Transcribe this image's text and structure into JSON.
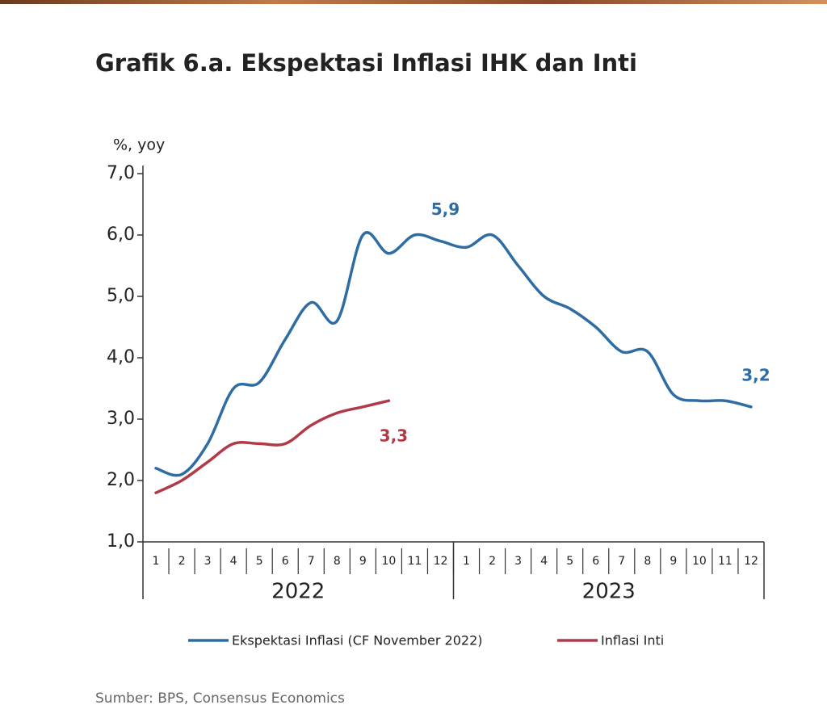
{
  "chart_data": {
    "type": "line",
    "title": "Grafik 6.a. Ekspektasi Inflasi IHK dan Inti",
    "y_label": "%, yoy",
    "source": "Sumber: BPS, Consensus Economics",
    "categories": [
      "1",
      "2",
      "3",
      "4",
      "5",
      "6",
      "7",
      "8",
      "9",
      "10",
      "11",
      "12",
      "1",
      "2",
      "3",
      "4",
      "5",
      "6",
      "7",
      "8",
      "9",
      "10",
      "11",
      "12"
    ],
    "groups": [
      "2022",
      "2023"
    ],
    "series": [
      {
        "name": "Ekspektasi Inflasi (CF November 2022)",
        "color": "#2e6da4",
        "values": [
          2.2,
          2.1,
          2.6,
          3.5,
          3.6,
          4.3,
          4.9,
          4.6,
          6.0,
          5.7,
          6.0,
          5.9,
          5.8,
          6.0,
          5.5,
          5.0,
          4.8,
          4.5,
          4.1,
          4.1,
          3.4,
          3.3,
          3.3,
          3.2
        ],
        "value_labels": [
          null,
          null,
          null,
          null,
          null,
          null,
          null,
          null,
          null,
          null,
          null,
          "5,9",
          null,
          null,
          null,
          null,
          null,
          null,
          null,
          null,
          null,
          null,
          null,
          "3,2"
        ]
      },
      {
        "name": "Inflasi Inti",
        "color": "#b03a48",
        "values": [
          1.8,
          2.0,
          2.3,
          2.6,
          2.6,
          2.6,
          2.9,
          3.1,
          3.2,
          3.3,
          null,
          null,
          null,
          null,
          null,
          null,
          null,
          null,
          null,
          null,
          null,
          null,
          null,
          null
        ],
        "value_labels": [
          null,
          null,
          null,
          null,
          null,
          null,
          null,
          null,
          null,
          "3,3",
          null,
          null,
          null,
          null,
          null,
          null,
          null,
          null,
          null,
          null,
          null,
          null,
          null,
          null
        ]
      }
    ],
    "ylim": [
      1.0,
      7.0
    ],
    "yticks": [
      {
        "value": 1.0,
        "label": "1,0"
      },
      {
        "value": 2.0,
        "label": "2,0"
      },
      {
        "value": 3.0,
        "label": "3,0"
      },
      {
        "value": 4.0,
        "label": "4,0"
      },
      {
        "value": 5.0,
        "label": "5,0"
      },
      {
        "value": 6.0,
        "label": "6,0"
      },
      {
        "value": 7.0,
        "label": "7,0"
      }
    ],
    "grid": false
  }
}
